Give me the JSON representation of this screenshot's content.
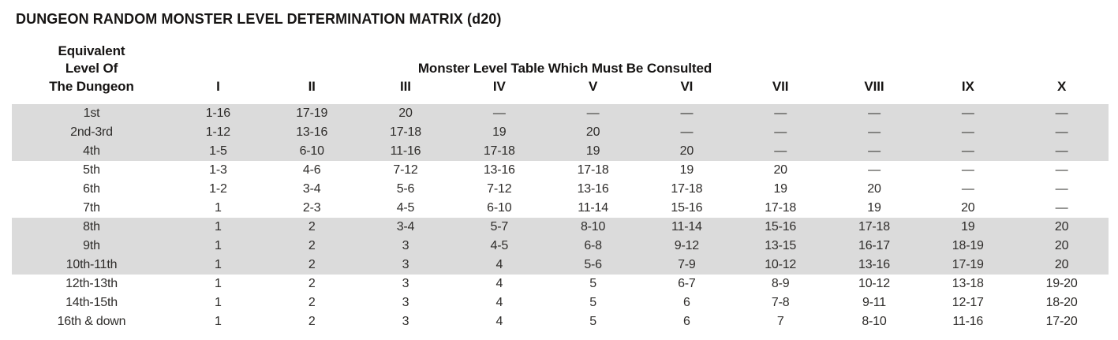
{
  "title": "DUNGEON RANDOM MONSTER LEVEL DETERMINATION MATRIX (d20)",
  "table": {
    "row_header": {
      "line1": "Equivalent",
      "line2": "Level Of",
      "line3": "The Dungeon"
    },
    "span_header": "Monster Level Table Which Must Be Consulted",
    "columns": [
      "I",
      "II",
      "III",
      "IV",
      "V",
      "VI",
      "VII",
      "VIII",
      "IX",
      "X"
    ],
    "empty_marker": "—",
    "colors": {
      "band_shade": "#dbdbdb",
      "text": "#2e2c2a",
      "heading_text": "#161413"
    },
    "rows": [
      {
        "label": "1st",
        "shaded": true,
        "values": [
          "1-16",
          "17-19",
          "20",
          "—",
          "—",
          "—",
          "—",
          "—",
          "—",
          "—"
        ]
      },
      {
        "label": "2nd-3rd",
        "shaded": true,
        "values": [
          "1-12",
          "13-16",
          "17-18",
          "19",
          "20",
          "—",
          "—",
          "—",
          "—",
          "—"
        ]
      },
      {
        "label": "4th",
        "shaded": true,
        "values": [
          "1-5",
          "6-10",
          "11-16",
          "17-18",
          "19",
          "20",
          "—",
          "—",
          "—",
          "—"
        ]
      },
      {
        "label": "5th",
        "shaded": false,
        "values": [
          "1-3",
          "4-6",
          "7-12",
          "13-16",
          "17-18",
          "19",
          "20",
          "—",
          "—",
          "—"
        ]
      },
      {
        "label": "6th",
        "shaded": false,
        "values": [
          "1-2",
          "3-4",
          "5-6",
          "7-12",
          "13-16",
          "17-18",
          "19",
          "20",
          "—",
          "—"
        ]
      },
      {
        "label": "7th",
        "shaded": false,
        "values": [
          "1",
          "2-3",
          "4-5",
          "6-10",
          "11-14",
          "15-16",
          "17-18",
          "19",
          "20",
          "—"
        ]
      },
      {
        "label": "8th",
        "shaded": true,
        "values": [
          "1",
          "2",
          "3-4",
          "5-7",
          "8-10",
          "11-14",
          "15-16",
          "17-18",
          "19",
          "20"
        ]
      },
      {
        "label": "9th",
        "shaded": true,
        "values": [
          "1",
          "2",
          "3",
          "4-5",
          "6-8",
          "9-12",
          "13-15",
          "16-17",
          "18-19",
          "20"
        ]
      },
      {
        "label": "10th-11th",
        "shaded": true,
        "values": [
          "1",
          "2",
          "3",
          "4",
          "5-6",
          "7-9",
          "10-12",
          "13-16",
          "17-19",
          "20"
        ]
      },
      {
        "label": "12th-13th",
        "shaded": false,
        "values": [
          "1",
          "2",
          "3",
          "4",
          "5",
          "6-7",
          "8-9",
          "10-12",
          "13-18",
          "19-20"
        ]
      },
      {
        "label": "14th-15th",
        "shaded": false,
        "values": [
          "1",
          "2",
          "3",
          "4",
          "5",
          "6",
          "7-8",
          "9-11",
          "12-17",
          "18-20"
        ]
      },
      {
        "label": "16th & down",
        "shaded": false,
        "values": [
          "1",
          "2",
          "3",
          "4",
          "5",
          "6",
          "7",
          "8-10",
          "11-16",
          "17-20"
        ]
      }
    ]
  }
}
